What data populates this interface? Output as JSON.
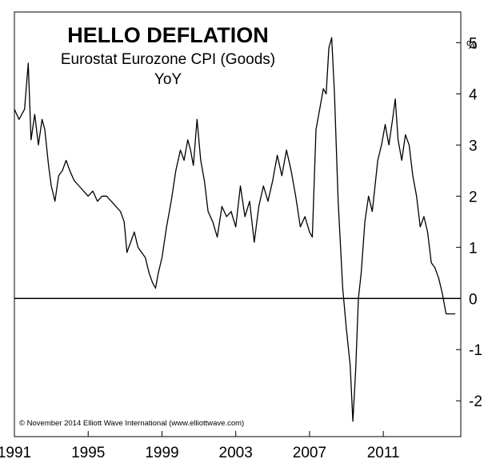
{
  "chart_data": {
    "type": "line",
    "title": "HELLO DEFLATION",
    "subtitle_line1": "Eurostat Eurozone CPI (Goods)",
    "subtitle_line2": "YoY",
    "ylabel": "%",
    "credit": "© November 2014 Elliott Wave International (www.elliottwave.com)",
    "ylim": [
      -2.7,
      5.6
    ],
    "xlim": [
      1991.0,
      2015.2
    ],
    "y_ticks": [
      "5",
      "4",
      "3",
      "2",
      "1",
      "0",
      "-1",
      "-2"
    ],
    "y_tick_values": [
      5,
      4,
      3,
      2,
      1,
      0,
      -1,
      -2
    ],
    "x_tick_labels": [
      "1991",
      "1995",
      "1999",
      "2003",
      "2007",
      "2011"
    ],
    "x_tick_values": [
      1991,
      1995,
      1999,
      2003,
      2007,
      2011
    ],
    "zero_line": true,
    "series": [
      {
        "x": [
          1991.0,
          1991.25,
          1991.55,
          1991.75,
          1991.9,
          1992.1,
          1992.3,
          1992.5,
          1992.65,
          1992.85,
          1993.0,
          1993.2,
          1993.4,
          1993.6,
          1993.8,
          1994.0,
          1994.25,
          1994.5,
          1994.75,
          1995.0,
          1995.25,
          1995.5,
          1995.75,
          1996.0,
          1996.25,
          1996.5,
          1996.75,
          1996.95,
          1997.1,
          1997.3,
          1997.5,
          1997.7,
          1997.9,
          1998.1,
          1998.3,
          1998.5,
          1998.65,
          1998.8,
          1999.0,
          1999.25,
          1999.5,
          1999.75,
          2000.0,
          2000.2,
          2000.4,
          2000.55,
          2000.7,
          2000.9,
          2001.1,
          2001.3,
          2001.5,
          2001.75,
          2002.0,
          2002.25,
          2002.5,
          2002.75,
          2003.0,
          2003.25,
          2003.5,
          2003.75,
          2004.0,
          2004.25,
          2004.5,
          2004.75,
          2005.0,
          2005.25,
          2005.5,
          2005.75,
          2006.0,
          2006.25,
          2006.5,
          2006.75,
          2007.0,
          2007.15,
          2007.35,
          2007.55,
          2007.75,
          2007.9,
          2008.05,
          2008.2,
          2008.35,
          2008.55,
          2008.8,
          2009.0,
          2009.2,
          2009.35,
          2009.5,
          2009.65,
          2009.8,
          2010.0,
          2010.2,
          2010.4,
          2010.55,
          2010.7,
          2010.9,
          2011.1,
          2011.3,
          2011.5,
          2011.65,
          2011.8,
          2012.0,
          2012.2,
          2012.4,
          2012.6,
          2012.8,
          2013.0,
          2013.2,
          2013.4,
          2013.6,
          2013.8,
          2014.0,
          2014.2,
          2014.4,
          2014.6,
          2014.75,
          2014.9
        ],
        "y": [
          3.7,
          3.5,
          3.7,
          4.6,
          3.1,
          3.6,
          3.0,
          3.5,
          3.3,
          2.6,
          2.2,
          1.9,
          2.4,
          2.5,
          2.7,
          2.5,
          2.3,
          2.2,
          2.1,
          2.0,
          2.1,
          1.9,
          2.0,
          2.0,
          1.9,
          1.8,
          1.7,
          1.5,
          0.9,
          1.1,
          1.3,
          1.0,
          0.9,
          0.8,
          0.5,
          0.3,
          0.2,
          0.5,
          0.8,
          1.4,
          1.9,
          2.5,
          2.9,
          2.7,
          3.1,
          2.9,
          2.6,
          3.5,
          2.7,
          2.3,
          1.7,
          1.5,
          1.2,
          1.8,
          1.6,
          1.7,
          1.4,
          2.2,
          1.6,
          1.9,
          1.1,
          1.8,
          2.2,
          1.9,
          2.3,
          2.8,
          2.4,
          2.9,
          2.5,
          2.0,
          1.4,
          1.6,
          1.3,
          1.2,
          3.3,
          3.7,
          4.1,
          4.0,
          4.9,
          5.1,
          4.0,
          1.9,
          0.2,
          -0.6,
          -1.3,
          -2.4,
          -1.4,
          0.0,
          0.5,
          1.5,
          2.0,
          1.7,
          2.2,
          2.7,
          3.0,
          3.4,
          3.0,
          3.5,
          3.9,
          3.1,
          2.7,
          3.2,
          3.0,
          2.4,
          2.0,
          1.4,
          1.6,
          1.3,
          0.7,
          0.6,
          0.4,
          0.1,
          -0.3,
          -0.3,
          -0.3,
          -0.3
        ]
      }
    ]
  }
}
